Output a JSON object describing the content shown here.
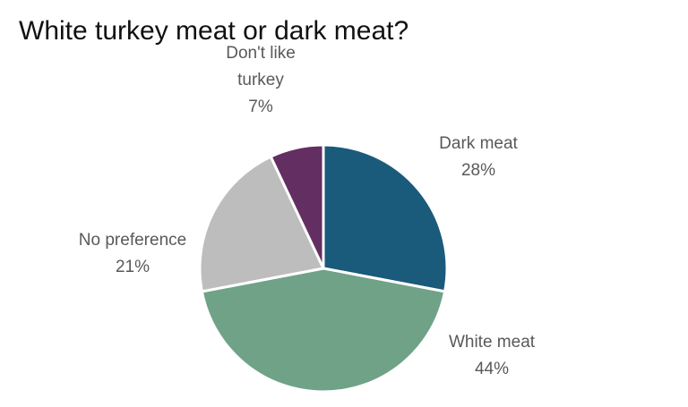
{
  "chart_data": {
    "type": "pie",
    "title": "White turkey meat or dark meat?",
    "slices": [
      {
        "name": "Dark meat",
        "value": 28,
        "label_lines": [
          "Dark meat",
          "28%"
        ],
        "color": "#1a5a7a"
      },
      {
        "name": "White meat",
        "value": 44,
        "label_lines": [
          "White meat",
          "44%"
        ],
        "color": "#70a287"
      },
      {
        "name": "No preference",
        "value": 21,
        "label_lines": [
          "No preference",
          "21%"
        ],
        "color": "#bdbdbd"
      },
      {
        "name": "Don't like turkey",
        "value": 7,
        "label_lines": [
          "Don't like",
          "turkey",
          "7%"
        ],
        "color": "#632e62"
      }
    ],
    "legend": "none"
  }
}
